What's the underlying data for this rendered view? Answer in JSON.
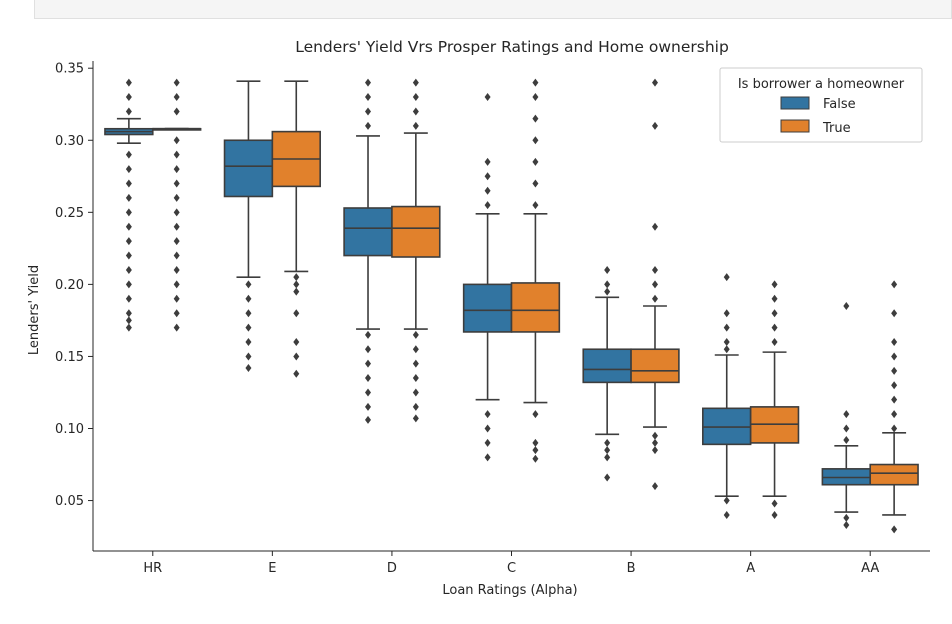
{
  "chart_data": {
    "type": "box",
    "title": "Lenders' Yield Vrs Prosper Ratings and Home ownership",
    "xlabel": "Loan Ratings (Alpha)",
    "ylabel": "Lenders' Yield",
    "ylim": [
      0.015,
      0.355
    ],
    "yticks": [
      "0.05",
      "0.10",
      "0.15",
      "0.20",
      "0.25",
      "0.30",
      "0.35"
    ],
    "categories": [
      "HR",
      "E",
      "D",
      "C",
      "B",
      "A",
      "AA"
    ],
    "legend": {
      "title": "Is borrower a homeowner",
      "position": "top-right"
    },
    "series": [
      {
        "name": "False",
        "color": "#3274a1",
        "boxes": [
          {
            "wlo": 0.298,
            "q1": 0.304,
            "med": 0.306,
            "q3": 0.308,
            "whi": 0.315,
            "fliers": [
              0.17,
              0.175,
              0.18,
              0.19,
              0.2,
              0.21,
              0.22,
              0.23,
              0.24,
              0.25,
              0.26,
              0.27,
              0.28,
              0.29,
              0.32,
              0.33,
              0.34
            ]
          },
          {
            "wlo": 0.205,
            "q1": 0.261,
            "med": 0.282,
            "q3": 0.3,
            "whi": 0.341,
            "fliers": [
              0.142,
              0.15,
              0.16,
              0.17,
              0.18,
              0.19,
              0.2
            ]
          },
          {
            "wlo": 0.169,
            "q1": 0.22,
            "med": 0.239,
            "q3": 0.253,
            "whi": 0.303,
            "fliers": [
              0.106,
              0.115,
              0.125,
              0.135,
              0.145,
              0.155,
              0.165,
              0.31,
              0.32,
              0.33,
              0.34
            ]
          },
          {
            "wlo": 0.12,
            "q1": 0.167,
            "med": 0.182,
            "q3": 0.2,
            "whi": 0.249,
            "fliers": [
              0.08,
              0.09,
              0.1,
              0.11,
              0.255,
              0.265,
              0.275,
              0.285,
              0.33
            ]
          },
          {
            "wlo": 0.096,
            "q1": 0.132,
            "med": 0.141,
            "q3": 0.155,
            "whi": 0.191,
            "fliers": [
              0.066,
              0.08,
              0.085,
              0.09,
              0.195,
              0.2,
              0.21
            ]
          },
          {
            "wlo": 0.053,
            "q1": 0.089,
            "med": 0.101,
            "q3": 0.114,
            "whi": 0.151,
            "fliers": [
              0.04,
              0.05,
              0.155,
              0.16,
              0.17,
              0.18,
              0.205
            ]
          },
          {
            "wlo": 0.042,
            "q1": 0.061,
            "med": 0.066,
            "q3": 0.072,
            "whi": 0.088,
            "fliers": [
              0.033,
              0.038,
              0.092,
              0.1,
              0.11,
              0.185
            ]
          }
        ]
      },
      {
        "name": "True",
        "color": "#e1812c",
        "boxes": [
          {
            "wlo": 0.308,
            "q1": 0.308,
            "med": 0.308,
            "q3": 0.308,
            "whi": 0.308,
            "fliers": [
              0.17,
              0.18,
              0.19,
              0.2,
              0.21,
              0.22,
              0.23,
              0.24,
              0.25,
              0.26,
              0.27,
              0.28,
              0.29,
              0.3,
              0.32,
              0.33,
              0.34
            ]
          },
          {
            "wlo": 0.209,
            "q1": 0.268,
            "med": 0.287,
            "q3": 0.306,
            "whi": 0.341,
            "fliers": [
              0.138,
              0.15,
              0.16,
              0.18,
              0.195,
              0.2,
              0.205
            ]
          },
          {
            "wlo": 0.169,
            "q1": 0.219,
            "med": 0.239,
            "q3": 0.254,
            "whi": 0.305,
            "fliers": [
              0.107,
              0.115,
              0.125,
              0.135,
              0.145,
              0.155,
              0.165,
              0.31,
              0.32,
              0.33,
              0.34
            ]
          },
          {
            "wlo": 0.118,
            "q1": 0.167,
            "med": 0.182,
            "q3": 0.201,
            "whi": 0.249,
            "fliers": [
              0.079,
              0.085,
              0.09,
              0.11,
              0.255,
              0.27,
              0.285,
              0.3,
              0.315,
              0.33,
              0.34
            ]
          },
          {
            "wlo": 0.101,
            "q1": 0.132,
            "med": 0.14,
            "q3": 0.155,
            "whi": 0.185,
            "fliers": [
              0.06,
              0.085,
              0.09,
              0.095,
              0.19,
              0.2,
              0.21,
              0.24,
              0.31,
              0.34
            ]
          },
          {
            "wlo": 0.053,
            "q1": 0.09,
            "med": 0.103,
            "q3": 0.115,
            "whi": 0.153,
            "fliers": [
              0.04,
              0.048,
              0.16,
              0.17,
              0.18,
              0.19,
              0.2
            ]
          },
          {
            "wlo": 0.04,
            "q1": 0.061,
            "med": 0.069,
            "q3": 0.075,
            "whi": 0.097,
            "fliers": [
              0.03,
              0.1,
              0.11,
              0.12,
              0.13,
              0.14,
              0.15,
              0.16,
              0.18,
              0.2
            ]
          }
        ]
      }
    ]
  }
}
